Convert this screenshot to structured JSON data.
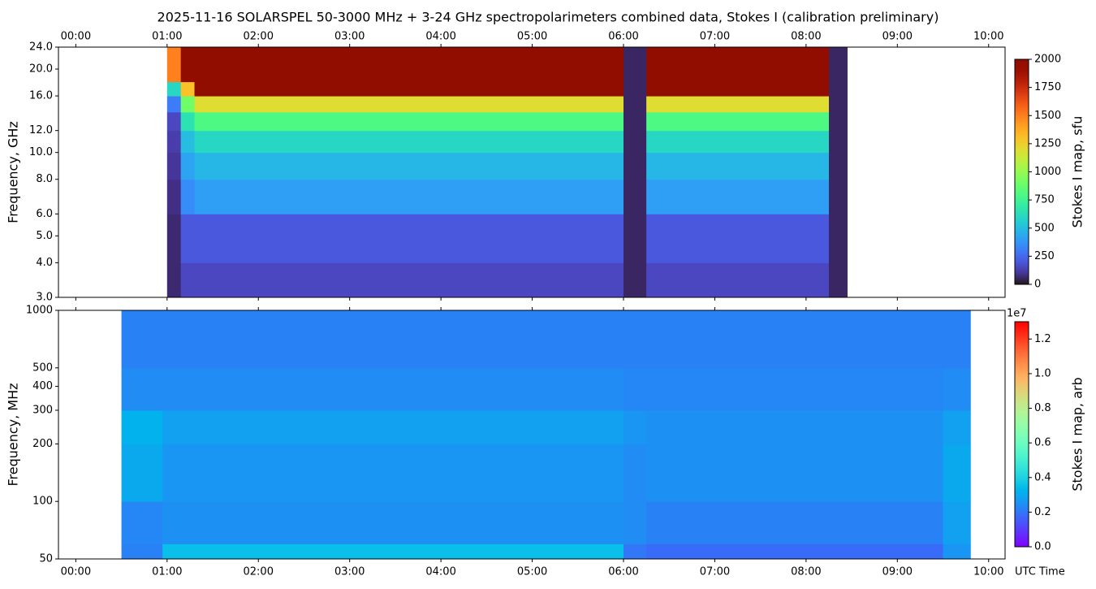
{
  "chart_data": [
    {
      "type": "heatmap",
      "title": "2025-11-16  SOLARSPEL  50-3000 MHz  +  3-24 GHz  spectropolarimeters combined data,  Stokes I  (calibration preliminary)",
      "ylabel": "Frequency, GHz",
      "xaxis_position": "top",
      "xlim": [
        -0.19,
        10.18
      ],
      "xticks": [
        {
          "value": 0,
          "label": "00:00"
        },
        {
          "value": 1,
          "label": "01:00"
        },
        {
          "value": 2,
          "label": "02:00"
        },
        {
          "value": 3,
          "label": "03:00"
        },
        {
          "value": 4,
          "label": "04:00"
        },
        {
          "value": 5,
          "label": "05:00"
        },
        {
          "value": 6,
          "label": "06:00"
        },
        {
          "value": 7,
          "label": "07:00"
        },
        {
          "value": 8,
          "label": "08:00"
        },
        {
          "value": 9,
          "label": "09:00"
        },
        {
          "value": 10,
          "label": "10:00"
        }
      ],
      "yscale": "log",
      "ylim": [
        3,
        24
      ],
      "yticks": [
        {
          "value": 3,
          "label": "3.0"
        },
        {
          "value": 4,
          "label": "4.0"
        },
        {
          "value": 5,
          "label": "5.0"
        },
        {
          "value": 6,
          "label": "6.0"
        },
        {
          "value": 8,
          "label": "8.0"
        },
        {
          "value": 10,
          "label": "10.0"
        },
        {
          "value": 12,
          "label": "12.0"
        },
        {
          "value": 16,
          "label": "16.0"
        },
        {
          "value": 20,
          "label": "20.0"
        },
        {
          "value": 24,
          "label": "24.0"
        }
      ],
      "colormap": "turbo",
      "clim": [
        0,
        2000
      ],
      "cticks": [
        0,
        250,
        500,
        750,
        1000,
        1250,
        1500,
        1750,
        2000
      ],
      "clabel": "Stokes I map, sfu",
      "x_bins": [
        1.0,
        1.15,
        1.3,
        6.0,
        6.25,
        8.25,
        8.45
      ],
      "y_bins": [
        3,
        4,
        6,
        8,
        10,
        12,
        14,
        16,
        18,
        24
      ],
      "z": [
        [
          60,
          60,
          80,
          100,
          120,
          150,
          300,
          600,
          1500
        ],
        [
          150,
          200,
          350,
          420,
          500,
          650,
          900,
          1300,
          2000
        ],
        [
          150,
          200,
          400,
          480,
          600,
          800,
          1200,
          2000,
          2000
        ],
        [
          50,
          50,
          50,
          50,
          50,
          50,
          50,
          50,
          50
        ],
        [
          150,
          200,
          400,
          480,
          600,
          800,
          1200,
          2000,
          2000
        ],
        [
          50,
          50,
          50,
          50,
          50,
          50,
          50,
          50,
          50
        ]
      ]
    },
    {
      "type": "heatmap",
      "ylabel": "Frequency, MHz",
      "xlabel": "UTC Time",
      "xaxis_position": "bottom",
      "xlim": [
        -0.19,
        10.18
      ],
      "xticks": [
        {
          "value": 0,
          "label": "00:00"
        },
        {
          "value": 1,
          "label": "01:00"
        },
        {
          "value": 2,
          "label": "02:00"
        },
        {
          "value": 3,
          "label": "03:00"
        },
        {
          "value": 4,
          "label": "04:00"
        },
        {
          "value": 5,
          "label": "05:00"
        },
        {
          "value": 6,
          "label": "06:00"
        },
        {
          "value": 7,
          "label": "07:00"
        },
        {
          "value": 8,
          "label": "08:00"
        },
        {
          "value": 9,
          "label": "09:00"
        },
        {
          "value": 10,
          "label": "10:00"
        }
      ],
      "yscale": "log",
      "ylim": [
        50,
        1000
      ],
      "yticks": [
        50,
        100,
        200,
        300,
        400,
        500,
        1000
      ],
      "colormap": "rainbow",
      "clim": [
        0,
        13000000
      ],
      "cticks": [
        {
          "value": 0,
          "label": "0.0"
        },
        {
          "value": 2000000,
          "label": "0.2"
        },
        {
          "value": 4000000,
          "label": "0.4"
        },
        {
          "value": 6000000,
          "label": "0.6"
        },
        {
          "value": 8000000,
          "label": "0.8"
        },
        {
          "value": 10000000,
          "label": "1.0"
        },
        {
          "value": 12000000,
          "label": "1.2"
        }
      ],
      "coffset": "1e7",
      "clabel": "Stokes I map, arb",
      "x_bins": [
        0.5,
        0.95,
        6.0,
        6.25,
        9.5,
        9.8
      ],
      "y_bins": [
        50,
        60,
        100,
        200,
        300,
        500,
        1000
      ],
      "z": [
        [
          2200000,
          2300000,
          3000000,
          3200000,
          2400000,
          2200000
        ],
        [
          3500000,
          2500000,
          2600000,
          2800000,
          2400000,
          2200000
        ],
        [
          2000000,
          2400000,
          2400000,
          2600000,
          2300000,
          2200000
        ],
        [
          1800000,
          2200000,
          2500000,
          2500000,
          2300000,
          2200000
        ],
        [
          2600000,
          2800000,
          3000000,
          2800000,
          2400000,
          2200000
        ]
      ]
    }
  ]
}
